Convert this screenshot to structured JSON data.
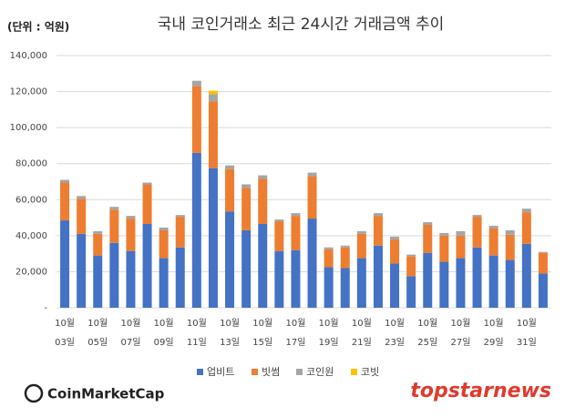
{
  "chart_data": {
    "type": "stacked_bar",
    "title": "국내 코인거래소 최근 24시간 거래금액 추이",
    "unit_label": "(단위 : 억원)",
    "categories": [
      [
        "10월",
        "03일"
      ],
      null,
      [
        "10월",
        "05일"
      ],
      null,
      [
        "10월",
        "07일"
      ],
      null,
      [
        "10월",
        "09일"
      ],
      null,
      [
        "10월",
        "11일"
      ],
      null,
      [
        "10월",
        "13일"
      ],
      null,
      [
        "10월",
        "15일"
      ],
      null,
      [
        "10월",
        "17일"
      ],
      null,
      [
        "10월",
        "19일"
      ],
      null,
      [
        "10월",
        "21일"
      ],
      null,
      [
        "10월",
        "23일"
      ],
      null,
      [
        "10월",
        "25일"
      ],
      null,
      [
        "10월",
        "27일"
      ],
      null,
      [
        "10월",
        "29일"
      ],
      null,
      [
        "10월",
        "31일"
      ],
      null
    ],
    "series": [
      {
        "name": "업비트",
        "color": "#4472c4",
        "values": [
          48500,
          41000,
          29000,
          36000,
          31500,
          46500,
          27500,
          33500,
          86000,
          77500,
          53500,
          43000,
          46500,
          31500,
          32000,
          49500,
          22500,
          22000,
          27500,
          34500,
          24500,
          17500,
          30500,
          25500,
          27500,
          33500,
          29000,
          26500,
          35500,
          19000
        ]
      },
      {
        "name": "빗썸",
        "color": "#ed7d31",
        "values": [
          21000,
          19500,
          12000,
          18500,
          18000,
          22000,
          15500,
          17000,
          37000,
          37000,
          23500,
          23500,
          25000,
          16500,
          19000,
          23500,
          10000,
          11500,
          13500,
          16500,
          13500,
          11000,
          15500,
          14500,
          12500,
          17000,
          15000,
          14000,
          17500,
          11500
        ]
      },
      {
        "name": "코인원",
        "color": "#a5a5a5",
        "values": [
          1500,
          1500,
          1500,
          1500,
          1500,
          1000,
          1500,
          1000,
          3000,
          4000,
          2000,
          2000,
          2000,
          1000,
          1500,
          2000,
          1000,
          1000,
          1500,
          1500,
          1500,
          1000,
          1500,
          1500,
          2500,
          1000,
          1500,
          2500,
          2000,
          500
        ]
      },
      {
        "name": "코빗",
        "color": "#ffc000",
        "values": [
          0,
          0,
          0,
          0,
          0,
          0,
          0,
          0,
          0,
          2000,
          0,
          0,
          0,
          0,
          0,
          0,
          0,
          0,
          0,
          0,
          0,
          0,
          0,
          0,
          0,
          0,
          0,
          0,
          0,
          0
        ]
      }
    ],
    "ylim": [
      0,
      140000
    ],
    "yticks": [
      {
        "value": 0,
        "label": "-"
      },
      {
        "value": 20000,
        "label": "20,000"
      },
      {
        "value": 40000,
        "label": "40,000"
      },
      {
        "value": 60000,
        "label": "60,000"
      },
      {
        "value": 80000,
        "label": "80,000"
      },
      {
        "value": 100000,
        "label": "100,000"
      },
      {
        "value": 120000,
        "label": "120,000"
      },
      {
        "value": 140000,
        "label": "140,000"
      }
    ],
    "grid": true,
    "legend": "bottom",
    "logos": [
      "CoinMarketCap",
      "topstarnews"
    ]
  }
}
